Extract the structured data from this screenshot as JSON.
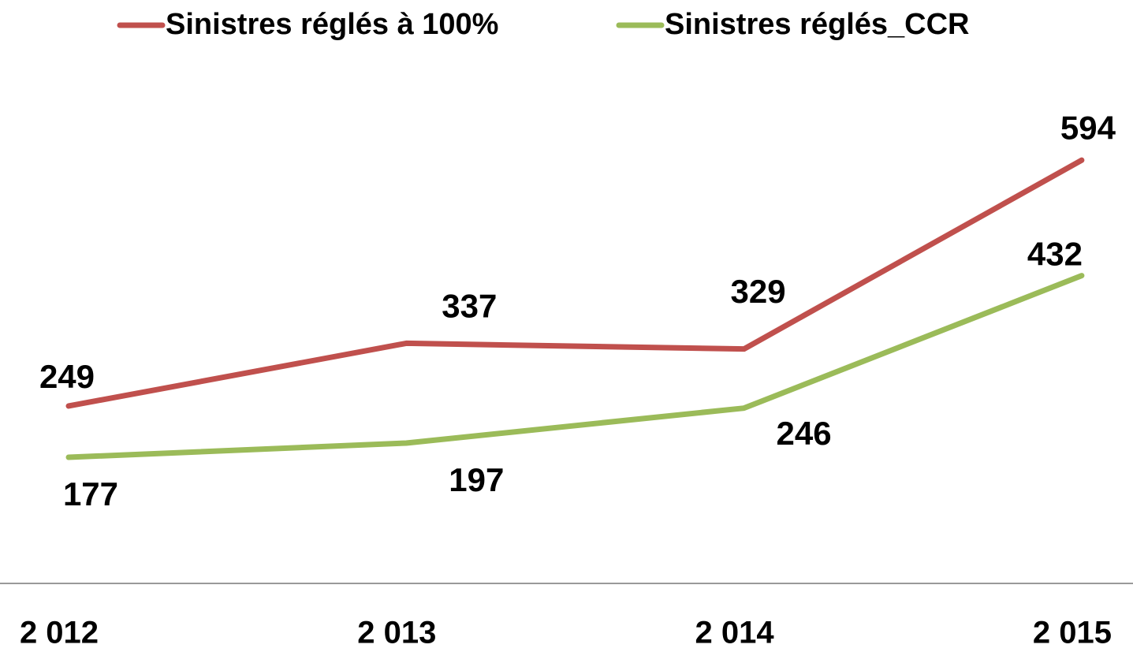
{
  "chart_data": {
    "type": "line",
    "categories": [
      "2 012",
      "2 013",
      "2 014",
      "2 015"
    ],
    "series": [
      {
        "name": "Sinistres réglés à 100%",
        "color": "#c0504d",
        "values": [
          249,
          337,
          329,
          594
        ]
      },
      {
        "name": "Sinistres réglés_CCR",
        "color": "#9bbb59",
        "values": [
          177,
          197,
          246,
          432
        ]
      }
    ],
    "ylim": [
      0,
      800
    ],
    "legend": "top"
  }
}
